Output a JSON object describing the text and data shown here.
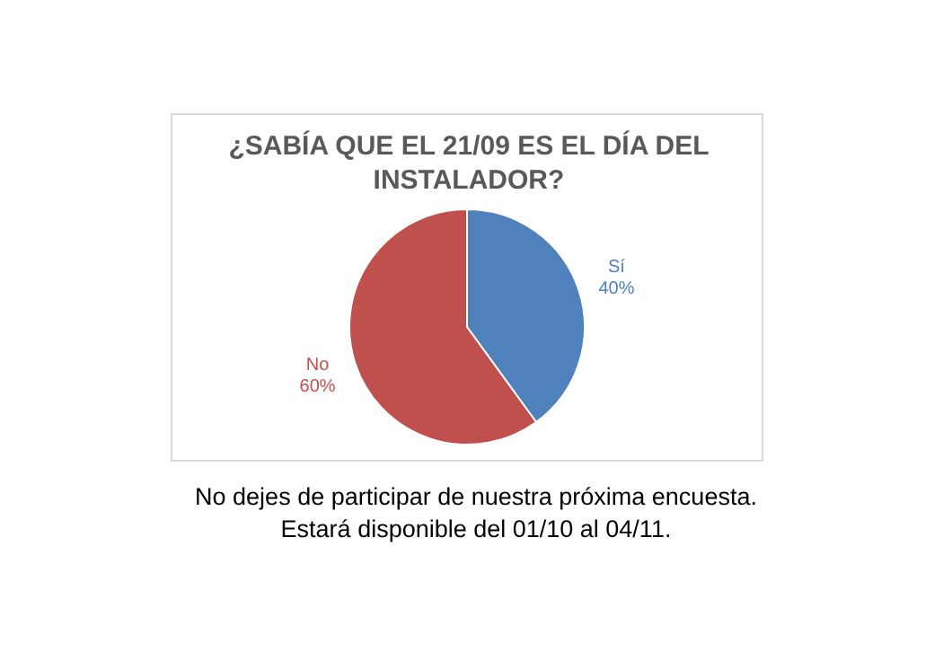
{
  "chart_data": {
    "type": "pie",
    "title": "¿SABÍA QUE EL 21/09 ES EL DÍA DEL INSTALADOR?",
    "categories": [
      "Sí",
      "No"
    ],
    "values": [
      40,
      60
    ],
    "colors": [
      "#4f81bd",
      "#c0504d"
    ],
    "value_labels": [
      "40%",
      "60%"
    ],
    "legend": false,
    "annotations": [
      "No dejes de participar de nuestra próxima encuesta.",
      "Estará disponible del 01/10 al 04/11."
    ]
  }
}
